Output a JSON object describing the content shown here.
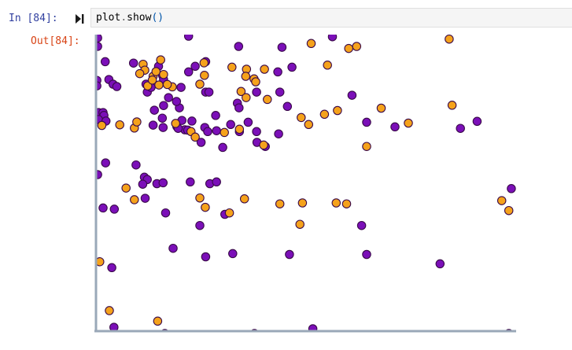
{
  "cell": {
    "input_prompt": "In [84]:",
    "output_prompt": "Out[84]:",
    "code": {
      "object": "plot",
      "dot": ".",
      "method": "show",
      "parens": "()"
    },
    "run_icon": "run-cell-icon"
  },
  "colors": {
    "purple": "#7b0fb8",
    "orange": "#f5a21b",
    "marker_edge": "#3a0a4a",
    "axis": "#9aa8b8",
    "input_bg": "#f5f5f5",
    "in_prompt": "#303f9f",
    "out_prompt": "#d84315"
  },
  "chart_data": {
    "type": "scatter",
    "title": "",
    "xlabel": "",
    "ylabel": "",
    "xlim": [
      0,
      100
    ],
    "ylim": [
      0,
      100
    ],
    "grid": false,
    "legend": "none",
    "series": [
      {
        "color": "purple",
        "points": [
          [
            0.4,
            99.4
          ],
          [
            22.2,
            100.0
          ],
          [
            34.2,
            96.5
          ],
          [
            44.6,
            96.2
          ],
          [
            56.7,
            99.8
          ],
          [
            0.4,
            96.5
          ],
          [
            2.2,
            91.3
          ],
          [
            9.0,
            90.8
          ],
          [
            26.3,
            91.3
          ],
          [
            15.0,
            89.7
          ],
          [
            16.0,
            86.5
          ],
          [
            22.2,
            87.8
          ],
          [
            23.8,
            89.7
          ],
          [
            43.6,
            87.8
          ],
          [
            47.0,
            89.4
          ],
          [
            16.2,
            85.2
          ],
          [
            12.3,
            80.9
          ],
          [
            12.0,
            83.6
          ],
          [
            3.1,
            85.2
          ],
          [
            4.1,
            83.6
          ],
          [
            0.2,
            84.9
          ],
          [
            0.2,
            83.0
          ],
          [
            5.0,
            82.8
          ],
          [
            13.2,
            82.5
          ],
          [
            20.4,
            82.5
          ],
          [
            26.3,
            80.9
          ],
          [
            27.1,
            80.9
          ],
          [
            38.5,
            80.9
          ],
          [
            44.1,
            80.9
          ],
          [
            17.4,
            79.0
          ],
          [
            16.2,
            76.3
          ],
          [
            20.0,
            75.5
          ],
          [
            33.9,
            77.1
          ],
          [
            34.3,
            75.5
          ],
          [
            45.9,
            76.0
          ],
          [
            61.4,
            79.8
          ],
          [
            19.3,
            77.7
          ],
          [
            0.6,
            73.9
          ],
          [
            1.7,
            73.9
          ],
          [
            1.9,
            72.9
          ],
          [
            0.6,
            71.5
          ],
          [
            2.4,
            71.0
          ],
          [
            14.0,
            74.7
          ],
          [
            15.9,
            72.0
          ],
          [
            13.7,
            69.6
          ],
          [
            19.4,
            69.1
          ],
          [
            21.3,
            68.0
          ],
          [
            20.6,
            71.2
          ],
          [
            26.1,
            68.8
          ],
          [
            28.7,
            72.9
          ],
          [
            28.9,
            67.7
          ],
          [
            32.3,
            69.8
          ],
          [
            34.4,
            67.4
          ],
          [
            36.5,
            70.6
          ],
          [
            16.1,
            68.8
          ],
          [
            23.0,
            71.0
          ],
          [
            19.7,
            68.5
          ],
          [
            22.0,
            67.9
          ],
          [
            26.8,
            67.4
          ],
          [
            38.5,
            67.4
          ],
          [
            43.8,
            66.6
          ],
          [
            64.9,
            70.6
          ],
          [
            71.7,
            69.0
          ],
          [
            91.4,
            70.9
          ],
          [
            87.4,
            68.5
          ],
          [
            25.2,
            63.7
          ],
          [
            30.4,
            62.0
          ],
          [
            38.6,
            63.7
          ],
          [
            40.6,
            62.3
          ],
          [
            0.4,
            52.7
          ],
          [
            2.3,
            56.7
          ],
          [
            9.6,
            56.0
          ],
          [
            11.6,
            51.8
          ],
          [
            12.3,
            51.0
          ],
          [
            11.2,
            49.4
          ],
          [
            14.6,
            49.6
          ],
          [
            16.1,
            49.9
          ],
          [
            22.6,
            50.2
          ],
          [
            27.3,
            49.6
          ],
          [
            28.9,
            50.2
          ],
          [
            1.7,
            41.3
          ],
          [
            4.4,
            40.9
          ],
          [
            11.8,
            44.6
          ],
          [
            16.7,
            39.6
          ],
          [
            30.9,
            39.1
          ],
          [
            24.9,
            35.3
          ],
          [
            63.7,
            35.3
          ],
          [
            99.6,
            47.9
          ],
          [
            18.5,
            27.5
          ],
          [
            26.3,
            24.6
          ],
          [
            32.8,
            25.7
          ],
          [
            46.4,
            25.4
          ],
          [
            64.9,
            25.4
          ],
          [
            82.5,
            22.2
          ],
          [
            3.8,
            20.9
          ],
          [
            4.3,
            0.5
          ],
          [
            16.5,
            -1.6
          ],
          [
            38.0,
            -1.6
          ],
          [
            52.0,
            0.0
          ],
          [
            99.0,
            -1.6
          ]
        ]
      },
      {
        "color": "orange",
        "points": [
          [
            11.3,
            90.4
          ],
          [
            13.7,
            86.3
          ],
          [
            14.4,
            87.9
          ],
          [
            15.5,
            91.9
          ],
          [
            16.2,
            86.9
          ],
          [
            11.7,
            88.4
          ],
          [
            10.5,
            87.2
          ],
          [
            25.9,
            90.9
          ],
          [
            36.1,
            88.7
          ],
          [
            40.4,
            88.7
          ],
          [
            35.9,
            86.3
          ],
          [
            26.0,
            86.6
          ],
          [
            15.1,
            83.3
          ],
          [
            12.4,
            83.0
          ],
          [
            18.3,
            82.7
          ],
          [
            34.8,
            81.1
          ],
          [
            24.9,
            83.6
          ],
          [
            32.6,
            89.4
          ],
          [
            37.9,
            85.4
          ],
          [
            38.3,
            84.4
          ],
          [
            36.0,
            79.0
          ],
          [
            41.1,
            78.4
          ],
          [
            17.1,
            83.5
          ],
          [
            13.5,
            85.0
          ],
          [
            55.5,
            90.1
          ],
          [
            51.6,
            97.5
          ],
          [
            62.5,
            96.5
          ],
          [
            60.6,
            95.8
          ],
          [
            84.7,
            99.0
          ],
          [
            85.4,
            76.4
          ],
          [
            68.4,
            75.4
          ],
          [
            57.9,
            74.6
          ],
          [
            54.8,
            73.3
          ],
          [
            1.4,
            69.5
          ],
          [
            5.7,
            69.7
          ],
          [
            9.2,
            68.6
          ],
          [
            9.8,
            70.7
          ],
          [
            30.8,
            67.1
          ],
          [
            34.4,
            68.2
          ],
          [
            19.1,
            70.2
          ],
          [
            22.8,
            67.4
          ],
          [
            23.8,
            65.5
          ],
          [
            40.2,
            62.8
          ],
          [
            49.2,
            72.2
          ],
          [
            51.0,
            69.8
          ],
          [
            64.9,
            62.3
          ],
          [
            74.9,
            70.3
          ],
          [
            9.2,
            44.1
          ],
          [
            7.2,
            48.1
          ],
          [
            24.9,
            44.7
          ],
          [
            26.2,
            41.5
          ],
          [
            35.6,
            44.4
          ],
          [
            44.1,
            42.7
          ],
          [
            49.5,
            43.0
          ],
          [
            57.6,
            43.0
          ],
          [
            60.1,
            42.7
          ],
          [
            32.0,
            39.6
          ],
          [
            48.9,
            35.7
          ],
          [
            97.3,
            43.8
          ],
          [
            99.0,
            40.4
          ],
          [
            0.9,
            22.9
          ],
          [
            3.2,
            6.2
          ],
          [
            14.8,
            2.6
          ]
        ]
      }
    ]
  }
}
